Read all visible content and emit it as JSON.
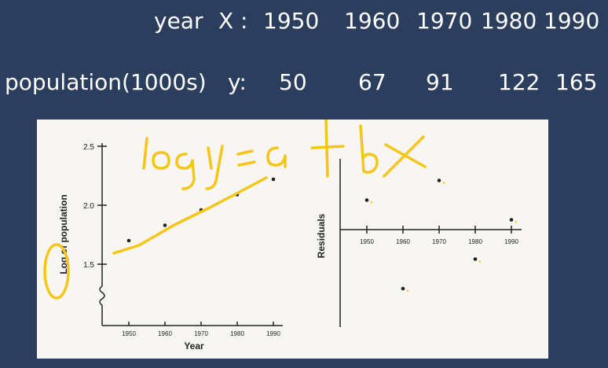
{
  "table": {
    "year_label": "year",
    "year_var": "X",
    "year_colon": ":",
    "years": [
      "1950",
      "1960",
      "1970",
      "1980",
      "1990"
    ],
    "population_label": "population(1000s)",
    "population_var": "y:",
    "populations": [
      "50",
      "67",
      "91",
      "122",
      "165"
    ]
  },
  "handwriting": {
    "equation": "log y = a + bx"
  },
  "colors": {
    "background": "#2c3e5d",
    "panel": "#f7f6f3",
    "ink": "#f5c518",
    "text": "#ffffff"
  },
  "chart_data": [
    {
      "type": "scatter",
      "title": "",
      "xlabel": "Year",
      "ylabel": "Log of population",
      "x": [
        1950,
        1960,
        1970,
        1980,
        1990
      ],
      "y": [
        1.7,
        1.83,
        1.96,
        2.09,
        2.22
      ],
      "x_ticks": [
        "1950",
        "1960",
        "1970",
        "1980",
        "1990"
      ],
      "y_ticks": [
        "1.5",
        "2.0",
        "2.5"
      ],
      "ylim": [
        1.3,
        2.6
      ],
      "axis_break": true,
      "grid": false
    },
    {
      "type": "scatter",
      "title": "",
      "xlabel": "",
      "ylabel": "Residuals",
      "x": [
        1950,
        1960,
        1970,
        1980,
        1990
      ],
      "y": [
        0.03,
        -0.06,
        0.05,
        -0.03,
        0.01
      ],
      "x_ticks": [
        "1950",
        "1960",
        "1970",
        "1980",
        "1990"
      ],
      "grid": false
    }
  ]
}
